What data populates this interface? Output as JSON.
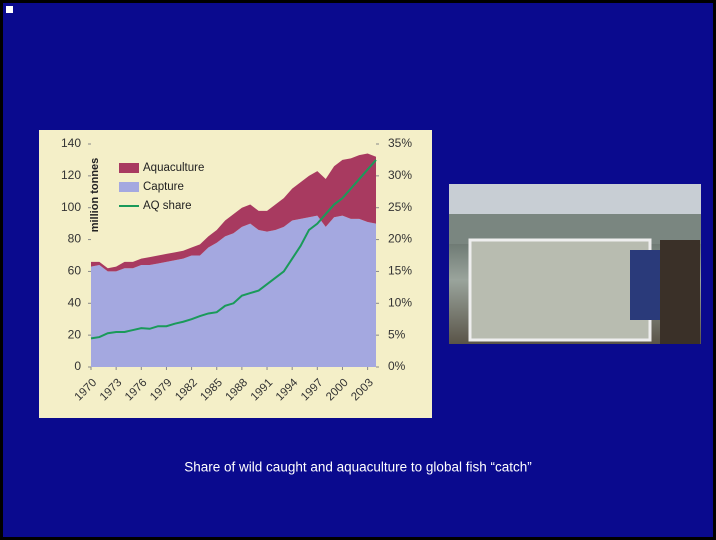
{
  "chart_data": {
    "type": "area",
    "ylabel": "million tonnes",
    "x": [
      1970,
      1971,
      1972,
      1973,
      1974,
      1975,
      1976,
      1977,
      1978,
      1979,
      1980,
      1981,
      1982,
      1983,
      1984,
      1985,
      1986,
      1987,
      1988,
      1989,
      1990,
      1991,
      1992,
      1993,
      1994,
      1995,
      1996,
      1997,
      1998,
      1999,
      2000,
      2001,
      2002,
      2003,
      2004
    ],
    "xlim": [
      1970,
      2004
    ],
    "xticks": [
      1970,
      1973,
      1976,
      1979,
      1982,
      1985,
      1988,
      1991,
      1994,
      1997,
      2000,
      2003
    ],
    "ylim": [
      0,
      140
    ],
    "yticks": [
      0,
      20,
      40,
      60,
      80,
      100,
      120,
      140
    ],
    "y2lim": [
      0,
      35
    ],
    "y2ticks": [
      {
        "value": 0,
        "label": "0%"
      },
      {
        "value": 5,
        "label": "5%"
      },
      {
        "value": 10,
        "label": "10%"
      },
      {
        "value": 15,
        "label": "15%"
      },
      {
        "value": 20,
        "label": "20%"
      },
      {
        "value": 25,
        "label": "25%"
      },
      {
        "value": 30,
        "label": "30%"
      },
      {
        "value": 35,
        "label": "35%"
      }
    ],
    "legend": "upper-left",
    "series": [
      {
        "name": "Aquaculture",
        "type": "area",
        "color": "#a83a60",
        "values": [
          3,
          2,
          2,
          3,
          4,
          4,
          4,
          5,
          5,
          5,
          5,
          5,
          5,
          7,
          7,
          8,
          10,
          12,
          12,
          12,
          12,
          13,
          16,
          18,
          20,
          23,
          26,
          28,
          30,
          32,
          35,
          38,
          40,
          43,
          42
        ]
      },
      {
        "name": "Capture",
        "type": "area",
        "color": "#a4a8e0",
        "values": [
          63,
          64,
          60,
          60,
          62,
          62,
          64,
          64,
          65,
          66,
          67,
          68,
          70,
          70,
          75,
          78,
          82,
          84,
          88,
          90,
          86,
          85,
          86,
          88,
          92,
          93,
          94,
          95,
          88,
          94,
          95,
          93,
          93,
          91,
          90
        ]
      },
      {
        "name": "AQ share",
        "type": "line",
        "axis": "y2",
        "color": "#1a9a5a",
        "values": [
          4.5,
          4.7,
          5.3,
          5.5,
          5.5,
          5.8,
          6.1,
          6.0,
          6.4,
          6.4,
          6.8,
          7.1,
          7.5,
          8.0,
          8.4,
          8.6,
          9.6,
          10,
          11.2,
          11.6,
          12,
          13,
          14,
          15,
          17,
          19,
          21.5,
          22.5,
          24,
          25.5,
          26.5,
          28,
          29.5,
          31,
          32.5
        ]
      }
    ]
  },
  "caption": "Share of wild caught and aquaculture to global fish “catch”"
}
